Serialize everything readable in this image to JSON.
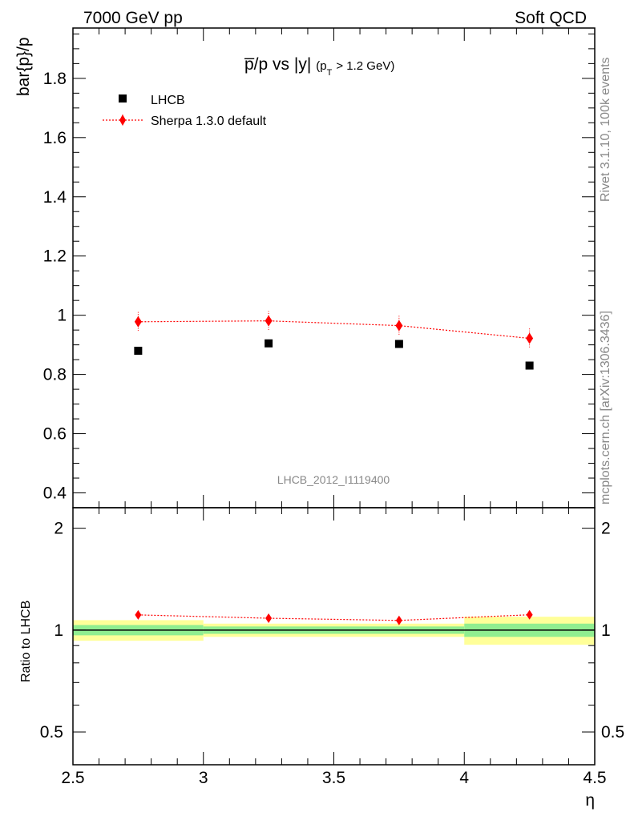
{
  "header": {
    "left": "7000 GeV pp",
    "right": "Soft QCD"
  },
  "side_labels": {
    "rivet": "Rivet 3.1.10,  100k events",
    "mcplots": "mcplots.cern.ch [arXiv:1306.3436]"
  },
  "analysis_id": "LHCB_2012_I1119400",
  "colors": {
    "data": "#000000",
    "mc": "#ff0000",
    "band_inner": "#90ee90",
    "band_outer": "#ffff99"
  },
  "chart_data": [
    {
      "type": "scatter",
      "title_main": "p̅/p vs |y|",
      "title_sub": "(p",
      "title_sub_T": "T",
      "title_sub_rest": "> 1.2 GeV)",
      "ylabel": "bar{p}/p",
      "xlim": [
        2.5,
        4.5
      ],
      "ylim": [
        0.35,
        1.97
      ],
      "yticks": [
        0.4,
        0.6,
        0.8,
        1,
        1.2,
        1.4,
        1.6,
        1.8
      ],
      "ytick_labels": [
        "0.4",
        "0.6",
        "0.8",
        "1",
        "1.2",
        "1.4",
        "1.6",
        "1.8"
      ],
      "legend": [
        "LHCB",
        "Sherpa 1.3.0 default"
      ],
      "legend_position": "top-left",
      "series": [
        {
          "name": "LHCB",
          "x": [
            2.75,
            3.25,
            3.75,
            4.25
          ],
          "y": [
            0.88,
            0.905,
            0.903,
            0.83
          ],
          "yerr": [
            0.0,
            0.0,
            0.0,
            0.0
          ]
        },
        {
          "name": "Sherpa 1.3.0 default",
          "x": [
            2.75,
            3.25,
            3.75,
            4.25
          ],
          "y": [
            0.978,
            0.981,
            0.965,
            0.922
          ],
          "yerr": [
            0.033,
            0.033,
            0.033,
            0.033
          ]
        }
      ]
    },
    {
      "type": "scatter",
      "ylabel": "Ratio to LHCB",
      "xlabel": "η",
      "xlim": [
        2.5,
        4.5
      ],
      "ylim": [
        0.4,
        2.3
      ],
      "log_y": true,
      "yticks": [
        0.5,
        1,
        2
      ],
      "ytick_labels": [
        "0.5",
        "1",
        "2"
      ],
      "xticks": [
        2.5,
        3,
        3.5,
        4,
        4.5
      ],
      "xtick_labels": [
        "2.5",
        "3",
        "3.5",
        "4",
        "4.5"
      ],
      "bands": [
        {
          "x0": 2.5,
          "x1": 3.0,
          "inner": [
            0.965,
            1.035
          ],
          "outer": [
            0.93,
            1.07
          ]
        },
        {
          "x0": 3.0,
          "x1": 3.5,
          "inner": [
            0.975,
            1.025
          ],
          "outer": [
            0.955,
            1.045
          ]
        },
        {
          "x0": 3.5,
          "x1": 4.0,
          "inner": [
            0.975,
            1.025
          ],
          "outer": [
            0.955,
            1.045
          ]
        },
        {
          "x0": 4.0,
          "x1": 4.5,
          "inner": [
            0.955,
            1.045
          ],
          "outer": [
            0.905,
            1.095
          ]
        }
      ],
      "series": [
        {
          "name": "Sherpa 1.3.0 default",
          "x": [
            2.75,
            3.25,
            3.75,
            4.25
          ],
          "y": [
            1.109,
            1.084,
            1.068,
            1.11
          ],
          "yerr": [
            0.02,
            0.02,
            0.02,
            0.025
          ]
        }
      ]
    }
  ]
}
